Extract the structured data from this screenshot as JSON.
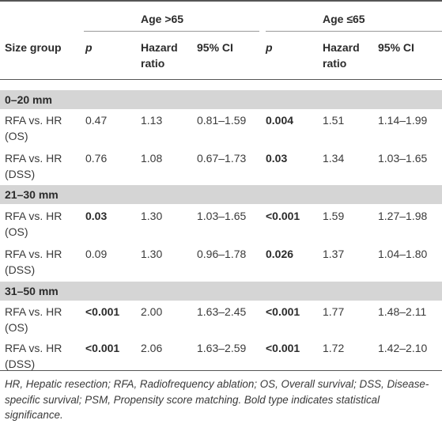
{
  "table": {
    "group_headers": [
      "Age >65",
      "Age ≤65"
    ],
    "columns": [
      "Size group",
      "p",
      "Hazard ratio",
      "95% CI",
      "p",
      "Hazard ratio",
      "95% CI"
    ],
    "sections": [
      {
        "label": "0–20 mm",
        "rows": [
          {
            "label": "RFA vs. HR (OS)",
            "cells": [
              "0.47",
              "1.13",
              "0.81–1.59",
              "0.004",
              "1.51",
              "1.14–1.99"
            ],
            "bold": [
              false,
              false,
              false,
              true,
              false,
              false
            ]
          },
          {
            "label": "RFA vs. HR (DSS)",
            "cells": [
              "0.76",
              "1.08",
              "0.67–1.73",
              "0.03",
              "1.34",
              "1.03–1.65"
            ],
            "bold": [
              false,
              false,
              false,
              true,
              false,
              false
            ]
          }
        ]
      },
      {
        "label": "21–30 mm",
        "rows": [
          {
            "label": "RFA vs. HR (OS)",
            "cells": [
              "0.03",
              "1.30",
              "1.03–1.65",
              "<0.001",
              "1.59",
              "1.27–1.98"
            ],
            "bold": [
              true,
              false,
              false,
              true,
              false,
              false
            ]
          },
          {
            "label": "RFA vs. HR (DSS)",
            "cells": [
              "0.09",
              "1.30",
              "0.96–1.78",
              "0.026",
              "1.37",
              "1.04–1.80"
            ],
            "bold": [
              false,
              false,
              false,
              true,
              false,
              false
            ]
          }
        ]
      },
      {
        "label": "31–50 mm",
        "rows": [
          {
            "label": "RFA vs. HR (OS)",
            "cells": [
              "<0.001",
              "2.00",
              "1.63–2.45",
              "<0.001",
              "1.77",
              "1.48–2.11"
            ],
            "bold": [
              true,
              false,
              false,
              true,
              false,
              false
            ]
          },
          {
            "label": "RFA vs. HR (DSS)",
            "cells": [
              "<0.001",
              "2.06",
              "1.63–2.59",
              "<0.001",
              "1.72",
              "1.42–2.10"
            ],
            "bold": [
              true,
              false,
              false,
              true,
              false,
              false
            ]
          }
        ]
      }
    ],
    "footnote": "HR, Hepatic resection; RFA, Radiofrequency ablation; OS, Overall survival; DSS, Disease-specific survival; PSM, Propensity score matching. Bold type indicates statistical significance."
  }
}
